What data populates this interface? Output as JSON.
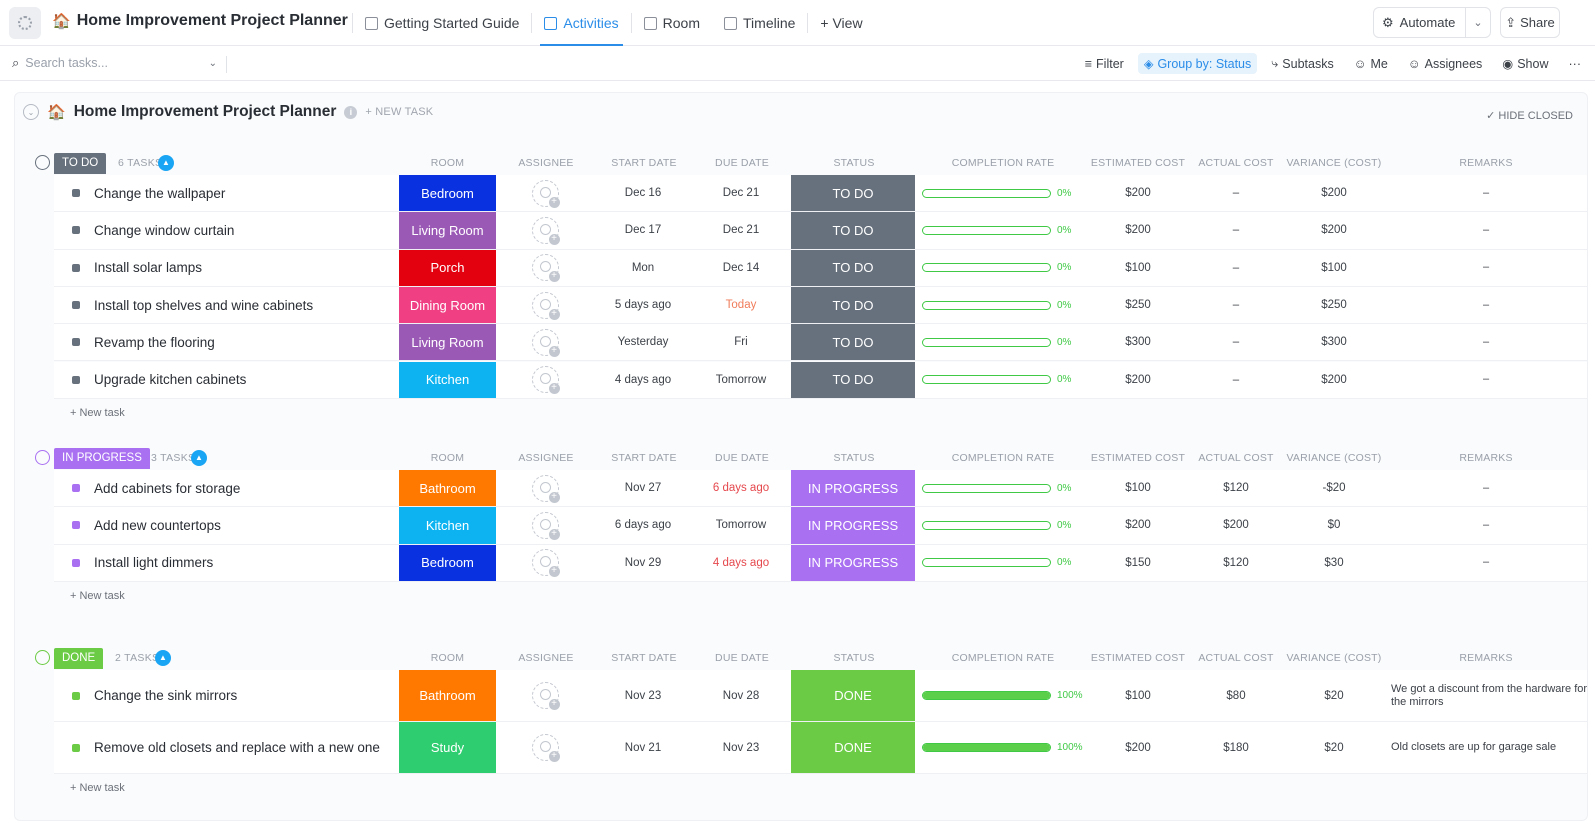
{
  "app": {
    "title": "Home Improvement Project Planner",
    "tabs": [
      {
        "label": "Getting Started Guide"
      },
      {
        "label": "Activities"
      },
      {
        "label": "Room"
      },
      {
        "label": "Timeline"
      },
      {
        "label": "+ View"
      }
    ],
    "automate_label": "Automate",
    "share_label": "Share"
  },
  "toolbar": {
    "search_placeholder": "Search tasks...",
    "filter": "Filter",
    "group_by": "Group by: Status",
    "subtasks": "Subtasks",
    "me": "Me",
    "assignees": "Assignees",
    "show": "Show",
    "more": "···"
  },
  "list": {
    "title": "Home Improvement Project Planner",
    "new_task": "+ NEW TASK",
    "hide_closed": "HIDE CLOSED",
    "columns": [
      "ROOM",
      "ASSIGNEE",
      "START DATE",
      "DUE DATE",
      "STATUS",
      "COMPLETION RATE",
      "ESTIMATED COST",
      "ACTUAL COST",
      "VARIANCE (COST)",
      "REMARKS"
    ],
    "add_task": "+ New task"
  },
  "colors": {
    "todo": "#67717d",
    "in_progress": "#a970f2",
    "done": "#6bcb44",
    "accent": "#2b8de8",
    "rooms": {
      "Bedroom": "#0a31e0",
      "Living Room": "#9b59b6",
      "Porch": "#e3000f",
      "Dining Room": "#f04083",
      "Kitchen": "#0db3f0",
      "Bathroom": "#ff7800",
      "Study": "#2ecd6f"
    }
  },
  "groups": [
    {
      "label": "TO DO",
      "count": "6 TASKS",
      "tasks": [
        {
          "name": "Change the wallpaper",
          "room": "Bedroom",
          "start": "Dec 16",
          "due": "Dec 21",
          "status": "TO DO",
          "completion": 0,
          "completion_label": "0%",
          "est": "$200",
          "actual": "–",
          "variance": "$200",
          "remarks": "–"
        },
        {
          "name": "Change window curtain",
          "room": "Living Room",
          "start": "Dec 17",
          "due": "Dec 21",
          "status": "TO DO",
          "completion": 0,
          "completion_label": "0%",
          "est": "$200",
          "actual": "–",
          "variance": "$200",
          "remarks": "–"
        },
        {
          "name": "Install solar lamps",
          "room": "Porch",
          "start": "Mon",
          "due": "Dec 14",
          "status": "TO DO",
          "completion": 0,
          "completion_label": "0%",
          "est": "$100",
          "actual": "–",
          "variance": "$100",
          "remarks": "–"
        },
        {
          "name": "Install top shelves and wine cabinets",
          "room": "Dining Room",
          "start": "5 days ago",
          "due": "Today",
          "status": "TO DO",
          "completion": 0,
          "completion_label": "0%",
          "est": "$250",
          "actual": "–",
          "variance": "$250",
          "remarks": "–"
        },
        {
          "name": "Revamp the flooring",
          "room": "Living Room",
          "start": "Yesterday",
          "due": "Fri",
          "status": "TO DO",
          "completion": 0,
          "completion_label": "0%",
          "est": "$300",
          "actual": "–",
          "variance": "$300",
          "remarks": "–"
        },
        {
          "name": "Upgrade kitchen cabinets",
          "room": "Kitchen",
          "start": "4 days ago",
          "due": "Tomorrow",
          "status": "TO DO",
          "completion": 0,
          "completion_label": "0%",
          "est": "$200",
          "actual": "–",
          "variance": "$200",
          "remarks": "–"
        }
      ]
    },
    {
      "label": "IN PROGRESS",
      "count": "3 TASKS",
      "tasks": [
        {
          "name": "Add cabinets for storage",
          "room": "Bathroom",
          "start": "Nov 27",
          "due": "6 days ago",
          "status": "IN PROGRESS",
          "completion": 0,
          "completion_label": "0%",
          "est": "$100",
          "actual": "$120",
          "variance": "-$20",
          "remarks": "–"
        },
        {
          "name": "Add new countertops",
          "room": "Kitchen",
          "start": "6 days ago",
          "due": "Tomorrow",
          "status": "IN PROGRESS",
          "completion": 0,
          "completion_label": "0%",
          "est": "$200",
          "actual": "$200",
          "variance": "$0",
          "remarks": "–"
        },
        {
          "name": "Install light dimmers",
          "room": "Bedroom",
          "start": "Nov 29",
          "due": "4 days ago",
          "status": "IN PROGRESS",
          "completion": 0,
          "completion_label": "0%",
          "est": "$150",
          "actual": "$120",
          "variance": "$30",
          "remarks": "–"
        }
      ]
    },
    {
      "label": "DONE",
      "count": "2 TASKS",
      "tasks": [
        {
          "name": "Change the sink mirrors",
          "room": "Bathroom",
          "start": "Nov 23",
          "due": "Nov 28",
          "status": "DONE",
          "completion": 100,
          "completion_label": "100%",
          "est": "$100",
          "actual": "$80",
          "variance": "$20",
          "remarks": "We got a discount from the hardware for the mirrors"
        },
        {
          "name": "Remove old closets and replace with a new one",
          "room": "Study",
          "start": "Nov 21",
          "due": "Nov 23",
          "status": "DONE",
          "completion": 100,
          "completion_label": "100%",
          "est": "$200",
          "actual": "$180",
          "variance": "$20",
          "remarks": "Old closets are up for garage sale"
        }
      ]
    }
  ]
}
